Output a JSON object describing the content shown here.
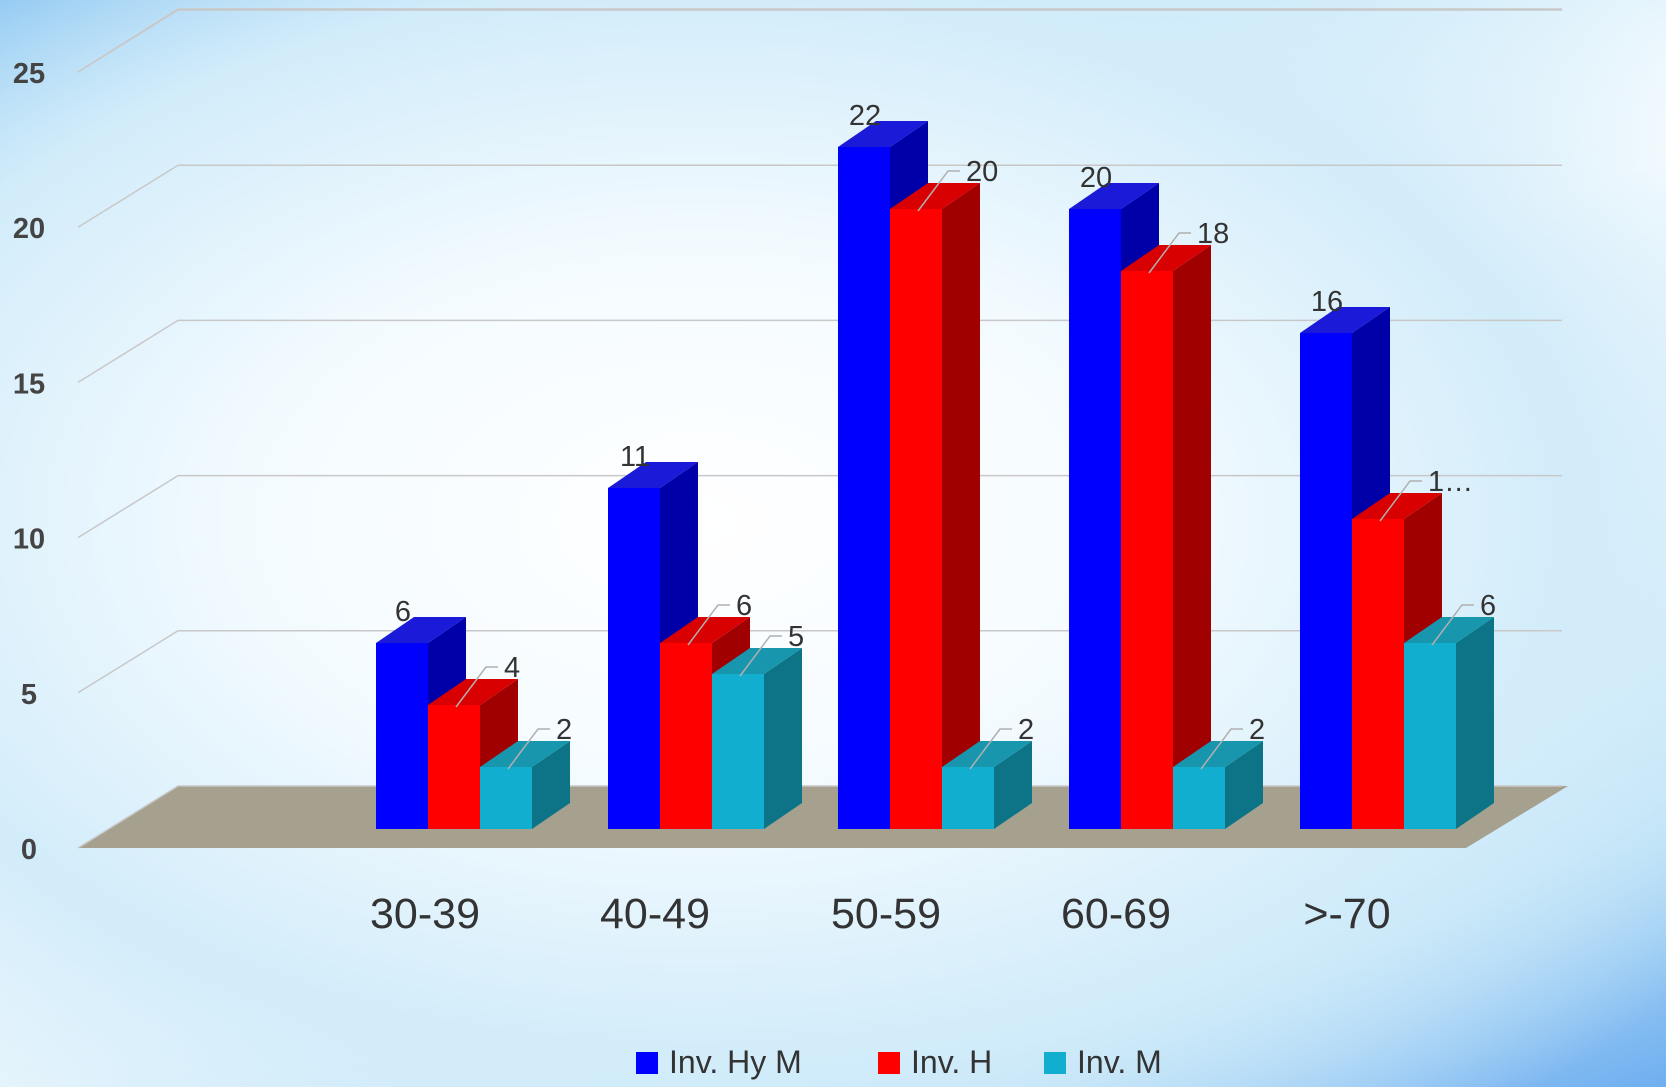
{
  "chart_data": {
    "type": "bar",
    "style": "3d-clustered-column",
    "title": "",
    "xlabel": "",
    "ylabel": "",
    "categories": [
      "30-39",
      "40-49",
      "50-59",
      "60-69",
      ">-70"
    ],
    "series": [
      {
        "name": "Inv. Hy M",
        "values": [
          6,
          11,
          22,
          20,
          16
        ],
        "labels": [
          "6",
          "11",
          "22",
          "20",
          "16"
        ],
        "color": "#0000ff",
        "side_color": "#0000a8",
        "top_color": "#1a1ad8"
      },
      {
        "name": "Inv. H",
        "values": [
          4,
          6,
          20,
          18,
          10
        ],
        "labels": [
          "4",
          "6",
          "20",
          "18",
          "1…"
        ],
        "color": "#ff0000",
        "side_color": "#a00000",
        "top_color": "#d80000"
      },
      {
        "name": "Inv. M",
        "values": [
          2,
          5,
          2,
          2,
          6
        ],
        "labels": [
          "2",
          "5",
          "2",
          "2",
          "6"
        ],
        "color": "#12aed0",
        "side_color": "#0d7487",
        "top_color": "#1896ad"
      }
    ],
    "y_ticks": [
      "0",
      "5",
      "10",
      "15",
      "20",
      "25"
    ],
    "ylim": [
      0,
      25
    ],
    "grid": true,
    "legend": "bottom",
    "colors": {
      "floor": "#a5a18e",
      "gridline": "#c8c8c8",
      "axis_text": "#333333",
      "tick_label": "#444444"
    }
  }
}
